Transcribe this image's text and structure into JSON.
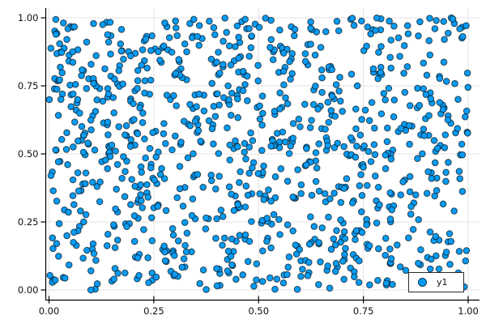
{
  "chart_data": {
    "type": "scatter",
    "title": "",
    "xlabel": "",
    "ylabel": "",
    "x_ticks": {
      "values": [
        0,
        0.25,
        0.5,
        0.75,
        1.0
      ],
      "labels": [
        "0.00",
        "0.25",
        "0.50",
        "0.75",
        "1.00"
      ]
    },
    "y_ticks": {
      "values": [
        0,
        0.25,
        0.5,
        0.75,
        1.0
      ],
      "labels": [
        "0.00",
        "0.25",
        "0.50",
        "0.75",
        "1.00"
      ]
    },
    "xlim": [
      -0.03,
      1.03
    ],
    "ylim": [
      -0.04,
      1.04
    ],
    "grid": true,
    "legend": {
      "position": "bottom-right",
      "entries": [
        {
          "label": "y1"
        }
      ]
    },
    "series": [
      {
        "name": "y1",
        "marker": "circle",
        "marker_color": "#099BF2",
        "marker_stroke": "rgba(0,0,0,0.65)",
        "marker_radius": 3.8,
        "n_points": 1000,
        "distribution": "uniform",
        "x_range": [
          0,
          1
        ],
        "y_range": [
          0,
          1
        ],
        "seed": 20240613
      }
    ],
    "colors": {
      "background": "#ffffff",
      "grid": "#e3e3e3",
      "axis": "#000000",
      "tick_label": "#111111",
      "legend_border": "#2b2b2b"
    }
  }
}
